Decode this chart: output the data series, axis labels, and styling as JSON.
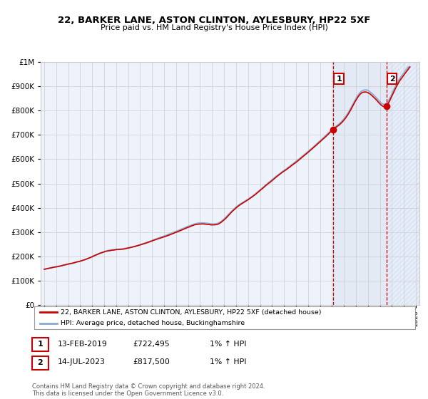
{
  "title": "22, BARKER LANE, ASTON CLINTON, AYLESBURY, HP22 5XF",
  "subtitle": "Price paid vs. HM Land Registry's House Price Index (HPI)",
  "legend_line1": "22, BARKER LANE, ASTON CLINTON, AYLESBURY, HP22 5XF (detached house)",
  "legend_line2": "HPI: Average price, detached house, Buckinghamshire",
  "annotation1_date": "13-FEB-2019",
  "annotation1_price": "£722,495",
  "annotation1_hpi": "1% ↑ HPI",
  "annotation1_year": 2019.1,
  "annotation1_value": 722495,
  "annotation2_date": "14-JUL-2023",
  "annotation2_price": "£817,500",
  "annotation2_hpi": "1% ↑ HPI",
  "annotation2_year": 2023.54,
  "annotation2_value": 817500,
  "footer": "Contains HM Land Registry data © Crown copyright and database right 2024.\nThis data is licensed under the Open Government Licence v3.0.",
  "bg_color": "#eef2fa",
  "hatch_bg_color": "#dde6f5",
  "red_color": "#cc0000",
  "blue_color": "#88aacc",
  "grid_color": "#cccccc",
  "ylim_max": 1000000,
  "xlim_start": 1995,
  "xlim_end": 2026
}
